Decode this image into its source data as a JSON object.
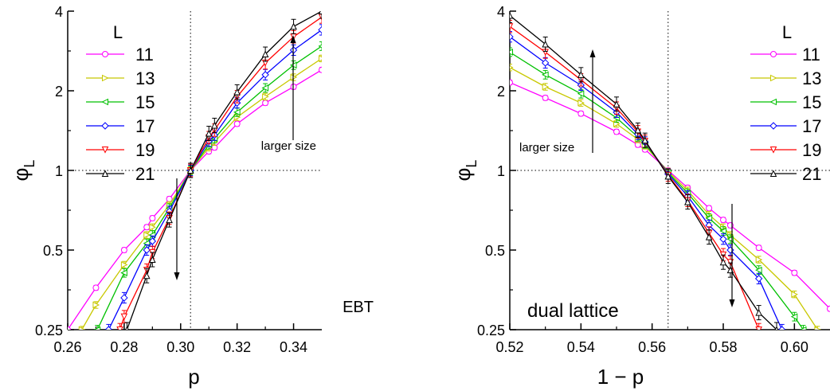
{
  "colors": {
    "11": "#ff00ff",
    "13": "#c8c800",
    "15": "#00c000",
    "17": "#0000ff",
    "19": "#ff0000",
    "21": "#000000"
  },
  "chart_data": [
    {
      "type": "line",
      "xlabel": "p",
      "ylabel_main": "φ",
      "ylabel_sub": "L",
      "xlim": [
        0.26,
        0.35
      ],
      "ylim": [
        0.25,
        4
      ],
      "yscale": "log",
      "xticks": [
        0.26,
        0.28,
        0.3,
        0.32,
        0.34
      ],
      "xtick_labels": [
        "0.26",
        "0.28",
        "0.30",
        "0.32",
        "0.34"
      ],
      "yticks": [
        0.25,
        0.5,
        1,
        2,
        4
      ],
      "ytick_labels": [
        "0.25",
        "0.5",
        "1",
        "2",
        "4"
      ],
      "crit_x": 0.3035,
      "legend_title": "L",
      "legend_position": "top-left",
      "annotation": "larger size",
      "label": "EBT",
      "series": [
        {
          "name": "11",
          "marker": "circle",
          "x": [
            0.26,
            0.27,
            0.28,
            0.288,
            0.29,
            0.296,
            0.3035,
            0.31,
            0.312,
            0.32,
            0.33,
            0.34,
            0.35
          ],
          "y": [
            0.25,
            0.36,
            0.5,
            0.61,
            0.66,
            0.78,
            1.0,
            1.18,
            1.22,
            1.5,
            1.8,
            2.07,
            2.4
          ]
        },
        {
          "name": "13",
          "marker": "triangle-right",
          "x": [
            0.265,
            0.27,
            0.28,
            0.288,
            0.29,
            0.296,
            0.3035,
            0.31,
            0.312,
            0.32,
            0.33,
            0.34,
            0.35
          ],
          "y": [
            0.25,
            0.31,
            0.44,
            0.57,
            0.61,
            0.74,
            1.0,
            1.22,
            1.28,
            1.59,
            1.9,
            2.25,
            2.65
          ]
        },
        {
          "name": "15",
          "marker": "triangle-left",
          "x": [
            0.2705,
            0.28,
            0.288,
            0.29,
            0.296,
            0.3035,
            0.31,
            0.312,
            0.32,
            0.33,
            0.34,
            0.35
          ],
          "y": [
            0.25,
            0.41,
            0.53,
            0.57,
            0.72,
            1.0,
            1.25,
            1.32,
            1.66,
            2.05,
            2.5,
            2.95
          ]
        },
        {
          "name": "17",
          "marker": "diamond",
          "x": [
            0.2745,
            0.28,
            0.288,
            0.29,
            0.296,
            0.3035,
            0.31,
            0.312,
            0.32,
            0.33,
            0.34,
            0.35
          ],
          "y": [
            0.25,
            0.33,
            0.5,
            0.54,
            0.7,
            1.0,
            1.29,
            1.36,
            1.8,
            2.3,
            2.85,
            3.4
          ]
        },
        {
          "name": "19",
          "marker": "triangle-down",
          "x": [
            0.2785,
            0.28,
            0.288,
            0.29,
            0.296,
            0.3035,
            0.31,
            0.312,
            0.32,
            0.33,
            0.34,
            0.35
          ],
          "y": [
            0.25,
            0.28,
            0.42,
            0.49,
            0.66,
            1.0,
            1.33,
            1.42,
            1.9,
            2.55,
            3.2,
            3.8
          ]
        },
        {
          "name": "21",
          "marker": "triangle-up",
          "x": [
            0.281,
            0.288,
            0.29,
            0.296,
            0.3035,
            0.31,
            0.312,
            0.32,
            0.33,
            0.34,
            0.35
          ],
          "y": [
            0.25,
            0.4,
            0.46,
            0.65,
            1.0,
            1.38,
            1.48,
            1.98,
            2.75,
            3.5,
            4.0
          ]
        }
      ]
    },
    {
      "type": "line",
      "xlabel": "1 − p",
      "ylabel_main": "φ",
      "ylabel_sub": "L",
      "xlim": [
        0.52,
        0.61
      ],
      "ylim": [
        0.25,
        4
      ],
      "yscale": "log",
      "xticks": [
        0.52,
        0.54,
        0.56,
        0.58,
        0.6
      ],
      "xtick_labels": [
        "0.52",
        "0.54",
        "0.56",
        "0.58",
        "0.60"
      ],
      "yticks": [
        0.25,
        0.5,
        1,
        2,
        4
      ],
      "ytick_labels": [
        "0.25",
        "0.5",
        "1",
        "2",
        "4"
      ],
      "crit_x": 0.5645,
      "legend_title": "L",
      "legend_position": "top-right",
      "annotation": "larger size",
      "label": "dual lattice",
      "series": [
        {
          "name": "11",
          "marker": "circle",
          "x": [
            0.52,
            0.53,
            0.54,
            0.55,
            0.556,
            0.558,
            0.5645,
            0.57,
            0.576,
            0.58,
            0.582,
            0.59,
            0.6,
            0.61
          ],
          "y": [
            2.15,
            1.88,
            1.64,
            1.4,
            1.25,
            1.2,
            1.0,
            0.86,
            0.72,
            0.65,
            0.62,
            0.51,
            0.41,
            0.3
          ]
        },
        {
          "name": "13",
          "marker": "triangle-right",
          "x": [
            0.52,
            0.53,
            0.54,
            0.55,
            0.556,
            0.558,
            0.5645,
            0.57,
            0.576,
            0.58,
            0.582,
            0.59,
            0.6,
            0.6065
          ],
          "y": [
            2.45,
            2.07,
            1.8,
            1.5,
            1.31,
            1.24,
            0.99,
            0.84,
            0.68,
            0.61,
            0.57,
            0.46,
            0.34,
            0.25
          ]
        },
        {
          "name": "15",
          "marker": "triangle-left",
          "x": [
            0.52,
            0.53,
            0.54,
            0.55,
            0.556,
            0.558,
            0.5645,
            0.57,
            0.576,
            0.58,
            0.582,
            0.59,
            0.6,
            0.6025
          ],
          "y": [
            2.8,
            2.3,
            1.95,
            1.58,
            1.34,
            1.26,
            0.98,
            0.82,
            0.66,
            0.59,
            0.55,
            0.42,
            0.28,
            0.25
          ]
        },
        {
          "name": "17",
          "marker": "diamond",
          "x": [
            0.52,
            0.53,
            0.54,
            0.55,
            0.556,
            0.558,
            0.5645,
            0.57,
            0.576,
            0.58,
            0.582,
            0.59,
            0.5965
          ],
          "y": [
            3.2,
            2.55,
            2.1,
            1.66,
            1.37,
            1.28,
            0.97,
            0.8,
            0.62,
            0.55,
            0.5,
            0.39,
            0.25
          ]
        },
        {
          "name": "19",
          "marker": "triangle-down",
          "x": [
            0.52,
            0.53,
            0.54,
            0.55,
            0.556,
            0.558,
            0.5645,
            0.57,
            0.576,
            0.58,
            0.582,
            0.59
          ],
          "y": [
            3.5,
            2.8,
            2.2,
            1.72,
            1.4,
            1.29,
            0.96,
            0.77,
            0.58,
            0.48,
            0.45,
            0.25
          ]
        },
        {
          "name": "21",
          "marker": "triangle-up",
          "x": [
            0.52,
            0.53,
            0.54,
            0.55,
            0.556,
            0.558,
            0.5645,
            0.57,
            0.576,
            0.58,
            0.582,
            0.59,
            0.595
          ],
          "y": [
            3.85,
            3.0,
            2.3,
            1.78,
            1.42,
            1.3,
            0.95,
            0.76,
            0.56,
            0.45,
            0.42,
            0.29,
            0.25
          ]
        }
      ]
    }
  ]
}
